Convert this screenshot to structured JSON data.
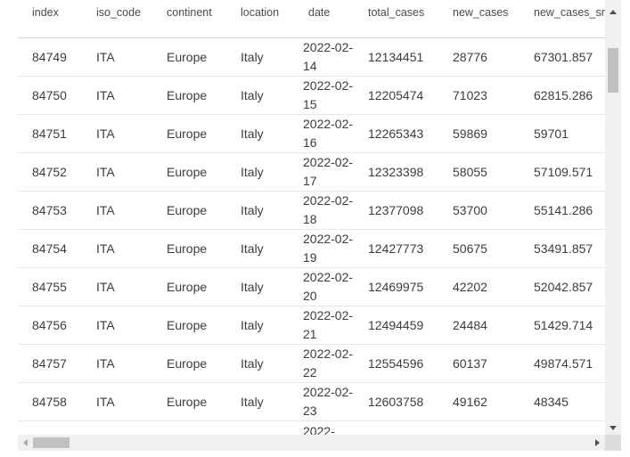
{
  "table": {
    "columns": [
      "index",
      "iso_code",
      "continent",
      "location",
      "date",
      "total_cases",
      "new_cases",
      "new_cases_smoothed"
    ],
    "rows": [
      [
        "84749",
        "ITA",
        "Europe",
        "Italy",
        "2022-02-14",
        "12134451",
        "28776",
        "67301.857"
      ],
      [
        "84750",
        "ITA",
        "Europe",
        "Italy",
        "2022-02-15",
        "12205474",
        "71023",
        "62815.286"
      ],
      [
        "84751",
        "ITA",
        "Europe",
        "Italy",
        "2022-02-16",
        "12265343",
        "59869",
        "59701"
      ],
      [
        "84752",
        "ITA",
        "Europe",
        "Italy",
        "2022-02-17",
        "12323398",
        "58055",
        "57109.571"
      ],
      [
        "84753",
        "ITA",
        "Europe",
        "Italy",
        "2022-02-18",
        "12377098",
        "53700",
        "55141.286"
      ],
      [
        "84754",
        "ITA",
        "Europe",
        "Italy",
        "2022-02-19",
        "12427773",
        "50675",
        "53491.857"
      ],
      [
        "84755",
        "ITA",
        "Europe",
        "Italy",
        "2022-02-20",
        "12469975",
        "42202",
        "52042.857"
      ],
      [
        "84756",
        "ITA",
        "Europe",
        "Italy",
        "2022-02-21",
        "12494459",
        "24484",
        "51429.714"
      ],
      [
        "84757",
        "ITA",
        "Europe",
        "Italy",
        "2022-02-22",
        "12554596",
        "60137",
        "49874.571"
      ],
      [
        "84758",
        "ITA",
        "Europe",
        "Italy",
        "2022-02-23",
        "12603758",
        "49162",
        "48345"
      ],
      [
        "",
        "",
        "",
        "",
        "2022-",
        "",
        "",
        ""
      ]
    ]
  }
}
